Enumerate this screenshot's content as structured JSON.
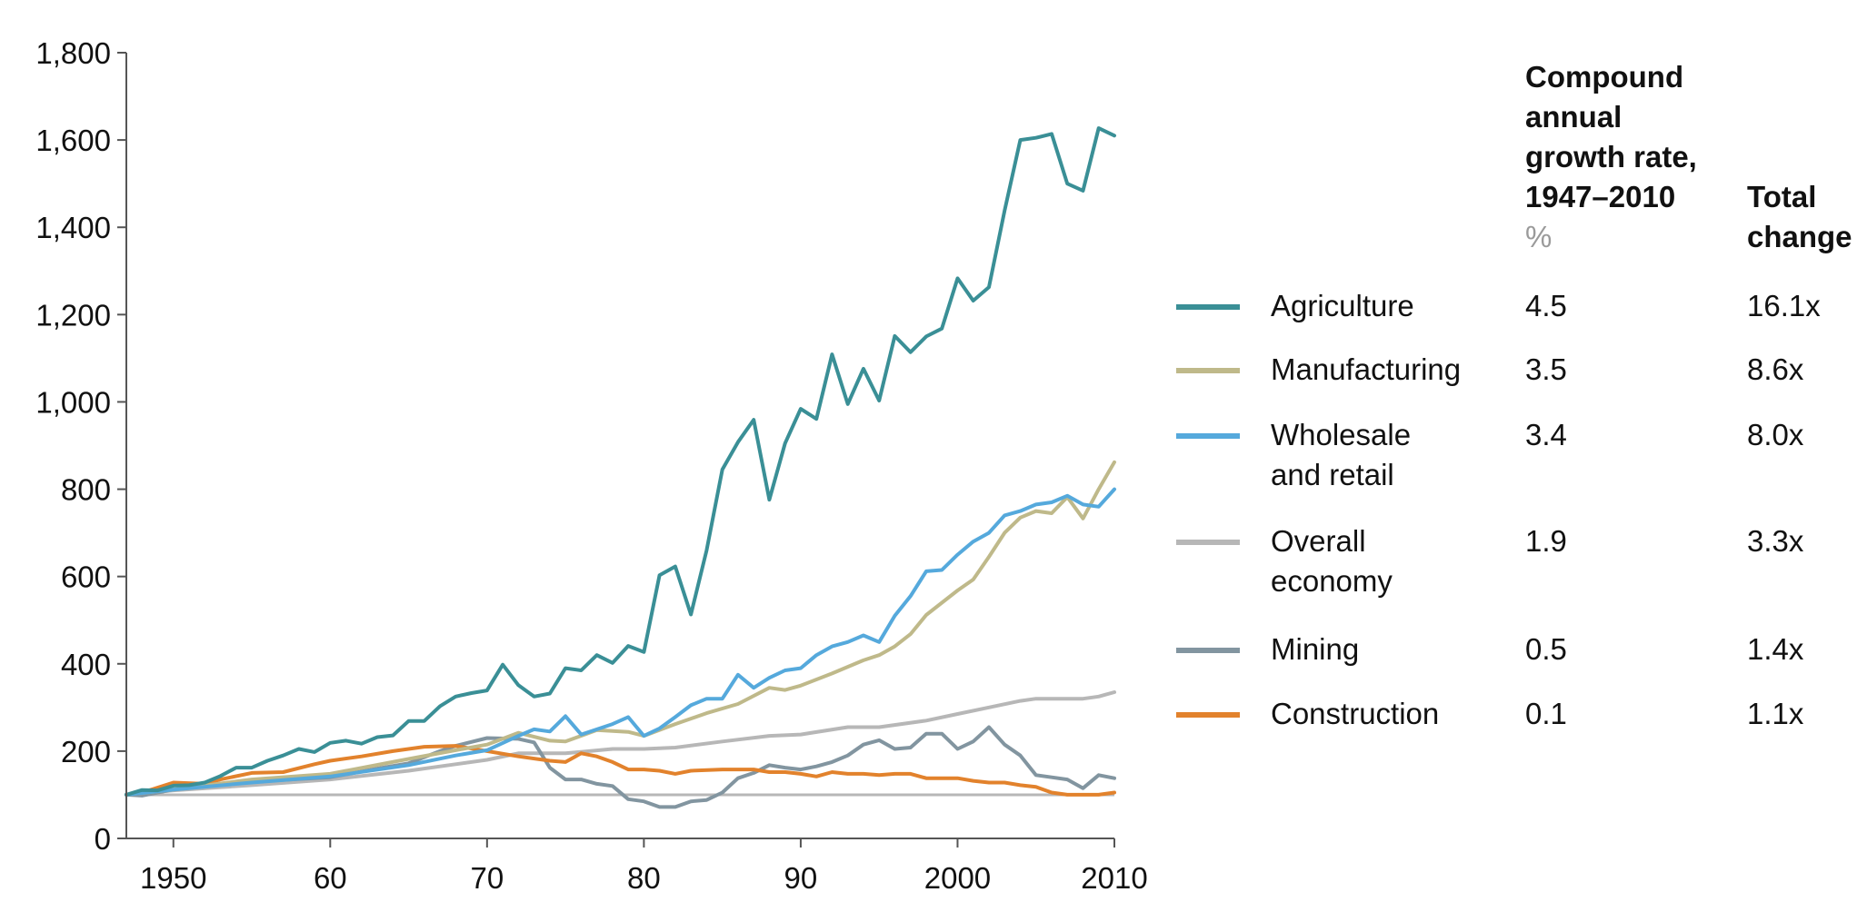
{
  "chart_data": {
    "type": "line",
    "y_ticks": [
      "0",
      "200",
      "400",
      "600",
      "800",
      "1,000",
      "1,200",
      "1,400",
      "1,600",
      "1,800"
    ],
    "x_ticks": [
      "1950",
      "60",
      "70",
      "80",
      "90",
      "2000",
      "2010"
    ],
    "ylim": [
      0,
      1800
    ],
    "xlim": [
      1947,
      2010
    ],
    "baseline": 100,
    "grid": false,
    "legend_position": "right",
    "table_headers": {
      "cagr": [
        "Compound",
        "annual",
        "growth rate,",
        "1947–2010"
      ],
      "cagr_unit": "%",
      "total": [
        "Total",
        "change"
      ]
    },
    "series": [
      {
        "name": "Agriculture",
        "name_lines": [
          "Agriculture"
        ],
        "color": "#3a8f96",
        "cagr": "4.5",
        "total_change": "16.1x",
        "points": [
          [
            1947,
            100
          ],
          [
            1948,
            111
          ],
          [
            1949,
            110
          ],
          [
            1950,
            121
          ],
          [
            1951,
            122
          ],
          [
            1952,
            128
          ],
          [
            1953,
            143
          ],
          [
            1954,
            162
          ],
          [
            1955,
            162
          ],
          [
            1956,
            178
          ],
          [
            1957,
            190
          ],
          [
            1958,
            205
          ],
          [
            1959,
            198
          ],
          [
            1960,
            219
          ],
          [
            1961,
            224
          ],
          [
            1962,
            217
          ],
          [
            1963,
            232
          ],
          [
            1964,
            236
          ],
          [
            1965,
            269
          ],
          [
            1966,
            269
          ],
          [
            1967,
            303
          ],
          [
            1968,
            325
          ],
          [
            1969,
            333
          ],
          [
            1970,
            339
          ],
          [
            1971,
            398
          ],
          [
            1972,
            351
          ],
          [
            1973,
            325
          ],
          [
            1974,
            332
          ],
          [
            1975,
            390
          ],
          [
            1976,
            385
          ],
          [
            1977,
            420
          ],
          [
            1978,
            402
          ],
          [
            1979,
            441
          ],
          [
            1980,
            427
          ],
          [
            1981,
            603
          ],
          [
            1982,
            623
          ],
          [
            1983,
            513
          ],
          [
            1984,
            660
          ],
          [
            1985,
            845
          ],
          [
            1986,
            908
          ],
          [
            1987,
            959
          ],
          [
            1988,
            776
          ],
          [
            1989,
            905
          ],
          [
            1990,
            984
          ],
          [
            1991,
            961
          ],
          [
            1992,
            1109
          ],
          [
            1993,
            995
          ],
          [
            1994,
            1076
          ],
          [
            1995,
            1003
          ],
          [
            1996,
            1151
          ],
          [
            1997,
            1114
          ],
          [
            1998,
            1150
          ],
          [
            1999,
            1168
          ],
          [
            2000,
            1283
          ],
          [
            2001,
            1232
          ],
          [
            2002,
            1263
          ],
          [
            2003,
            1438
          ],
          [
            2004,
            1600
          ],
          [
            2005,
            1605
          ],
          [
            2006,
            1614
          ],
          [
            2007,
            1500
          ],
          [
            2008,
            1484
          ],
          [
            2009,
            1627
          ],
          [
            2010,
            1610
          ]
        ]
      },
      {
        "name": "Manufacturing",
        "name_lines": [
          "Manufacturing"
        ],
        "color": "#bfb98a",
        "cagr": "3.5",
        "total_change": "8.6x",
        "points": [
          [
            1947,
            100
          ],
          [
            1950,
            112
          ],
          [
            1955,
            135
          ],
          [
            1960,
            148
          ],
          [
            1965,
            182
          ],
          [
            1968,
            202
          ],
          [
            1970,
            215
          ],
          [
            1972,
            242
          ],
          [
            1974,
            224
          ],
          [
            1975,
            222
          ],
          [
            1977,
            248
          ],
          [
            1979,
            244
          ],
          [
            1980,
            235
          ],
          [
            1982,
            262
          ],
          [
            1984,
            287
          ],
          [
            1986,
            308
          ],
          [
            1988,
            345
          ],
          [
            1989,
            340
          ],
          [
            1990,
            350
          ],
          [
            1992,
            378
          ],
          [
            1994,
            408
          ],
          [
            1995,
            420
          ],
          [
            1996,
            440
          ],
          [
            1997,
            468
          ],
          [
            1998,
            512
          ],
          [
            2000,
            568
          ],
          [
            2001,
            593
          ],
          [
            2002,
            645
          ],
          [
            2003,
            700
          ],
          [
            2004,
            735
          ],
          [
            2005,
            750
          ],
          [
            2006,
            745
          ],
          [
            2007,
            782
          ],
          [
            2008,
            733
          ],
          [
            2009,
            800
          ],
          [
            2010,
            862
          ]
        ]
      },
      {
        "name": "Wholesale and retail",
        "name_lines": [
          "Wholesale",
          "and retail"
        ],
        "color": "#55a9dc",
        "cagr": "3.4",
        "total_change": "8.0x",
        "points": [
          [
            1947,
            100
          ],
          [
            1950,
            112
          ],
          [
            1955,
            128
          ],
          [
            1960,
            142
          ],
          [
            1965,
            168
          ],
          [
            1968,
            190
          ],
          [
            1970,
            202
          ],
          [
            1972,
            235
          ],
          [
            1973,
            250
          ],
          [
            1974,
            245
          ],
          [
            1975,
            280
          ],
          [
            1976,
            238
          ],
          [
            1978,
            262
          ],
          [
            1979,
            278
          ],
          [
            1980,
            235
          ],
          [
            1981,
            252
          ],
          [
            1982,
            278
          ],
          [
            1983,
            305
          ],
          [
            1984,
            320
          ],
          [
            1985,
            320
          ],
          [
            1986,
            375
          ],
          [
            1987,
            345
          ],
          [
            1988,
            368
          ],
          [
            1989,
            385
          ],
          [
            1990,
            390
          ],
          [
            1991,
            420
          ],
          [
            1992,
            440
          ],
          [
            1993,
            450
          ],
          [
            1994,
            465
          ],
          [
            1995,
            450
          ],
          [
            1996,
            510
          ],
          [
            1997,
            555
          ],
          [
            1998,
            612
          ],
          [
            1999,
            615
          ],
          [
            2000,
            650
          ],
          [
            2001,
            680
          ],
          [
            2002,
            700
          ],
          [
            2003,
            740
          ],
          [
            2004,
            750
          ],
          [
            2005,
            765
          ],
          [
            2006,
            770
          ],
          [
            2007,
            785
          ],
          [
            2008,
            765
          ],
          [
            2009,
            760
          ],
          [
            2010,
            800
          ]
        ]
      },
      {
        "name": "Overall economy",
        "name_lines": [
          "Overall",
          "economy"
        ],
        "color": "#b7b7b7",
        "cagr": "1.9",
        "total_change": "3.3x",
        "points": [
          [
            1947,
            100
          ],
          [
            1950,
            110
          ],
          [
            1955,
            122
          ],
          [
            1960,
            135
          ],
          [
            1965,
            155
          ],
          [
            1968,
            170
          ],
          [
            1970,
            180
          ],
          [
            1972,
            195
          ],
          [
            1975,
            195
          ],
          [
            1978,
            205
          ],
          [
            1980,
            205
          ],
          [
            1982,
            208
          ],
          [
            1985,
            222
          ],
          [
            1988,
            235
          ],
          [
            1990,
            238
          ],
          [
            1993,
            255
          ],
          [
            1995,
            255
          ],
          [
            1998,
            270
          ],
          [
            2000,
            285
          ],
          [
            2002,
            300
          ],
          [
            2004,
            315
          ],
          [
            2005,
            320
          ],
          [
            2008,
            320
          ],
          [
            2009,
            325
          ],
          [
            2010,
            335
          ]
        ]
      },
      {
        "name": "Mining",
        "name_lines": [
          "Mining"
        ],
        "color": "#8295a0",
        "cagr": "0.5",
        "total_change": "1.4x",
        "points": [
          [
            1947,
            100
          ],
          [
            1948,
            98
          ],
          [
            1950,
            112
          ],
          [
            1955,
            130
          ],
          [
            1960,
            140
          ],
          [
            1963,
            160
          ],
          [
            1965,
            172
          ],
          [
            1967,
            200
          ],
          [
            1968,
            212
          ],
          [
            1970,
            230
          ],
          [
            1972,
            228
          ],
          [
            1973,
            220
          ],
          [
            1974,
            162
          ],
          [
            1975,
            135
          ],
          [
            1976,
            135
          ],
          [
            1977,
            125
          ],
          [
            1978,
            120
          ],
          [
            1979,
            90
          ],
          [
            1980,
            85
          ],
          [
            1981,
            72
          ],
          [
            1982,
            72
          ],
          [
            1983,
            85
          ],
          [
            1984,
            88
          ],
          [
            1985,
            105
          ],
          [
            1986,
            138
          ],
          [
            1987,
            150
          ],
          [
            1988,
            168
          ],
          [
            1989,
            162
          ],
          [
            1990,
            158
          ],
          [
            1991,
            165
          ],
          [
            1992,
            175
          ],
          [
            1993,
            190
          ],
          [
            1994,
            215
          ],
          [
            1995,
            225
          ],
          [
            1996,
            205
          ],
          [
            1997,
            208
          ],
          [
            1998,
            240
          ],
          [
            1999,
            240
          ],
          [
            2000,
            205
          ],
          [
            2001,
            222
          ],
          [
            2002,
            255
          ],
          [
            2003,
            215
          ],
          [
            2004,
            190
          ],
          [
            2005,
            145
          ],
          [
            2006,
            140
          ],
          [
            2007,
            135
          ],
          [
            2008,
            115
          ],
          [
            2009,
            145
          ],
          [
            2010,
            138
          ]
        ]
      },
      {
        "name": "Construction",
        "name_lines": [
          "Construction"
        ],
        "color": "#e2822c",
        "cagr": "0.1",
        "total_change": "1.1x",
        "points": [
          [
            1947,
            100
          ],
          [
            1948,
            105
          ],
          [
            1950,
            128
          ],
          [
            1952,
            125
          ],
          [
            1953,
            135
          ],
          [
            1955,
            150
          ],
          [
            1957,
            152
          ],
          [
            1959,
            170
          ],
          [
            1960,
            178
          ],
          [
            1962,
            188
          ],
          [
            1964,
            200
          ],
          [
            1966,
            210
          ],
          [
            1968,
            212
          ],
          [
            1970,
            200
          ],
          [
            1972,
            188
          ],
          [
            1974,
            178
          ],
          [
            1975,
            175
          ],
          [
            1976,
            195
          ],
          [
            1977,
            188
          ],
          [
            1978,
            175
          ],
          [
            1979,
            158
          ],
          [
            1980,
            158
          ],
          [
            1981,
            155
          ],
          [
            1982,
            148
          ],
          [
            1983,
            155
          ],
          [
            1985,
            158
          ],
          [
            1987,
            158
          ],
          [
            1988,
            152
          ],
          [
            1989,
            152
          ],
          [
            1990,
            148
          ],
          [
            1991,
            142
          ],
          [
            1992,
            152
          ],
          [
            1993,
            148
          ],
          [
            1994,
            148
          ],
          [
            1995,
            145
          ],
          [
            1996,
            148
          ],
          [
            1997,
            148
          ],
          [
            1998,
            138
          ],
          [
            1999,
            138
          ],
          [
            2000,
            138
          ],
          [
            2001,
            132
          ],
          [
            2002,
            128
          ],
          [
            2003,
            128
          ],
          [
            2004,
            122
          ],
          [
            2005,
            118
          ],
          [
            2006,
            105
          ],
          [
            2007,
            100
          ],
          [
            2008,
            100
          ],
          [
            2009,
            100
          ],
          [
            2010,
            105
          ]
        ]
      }
    ]
  }
}
